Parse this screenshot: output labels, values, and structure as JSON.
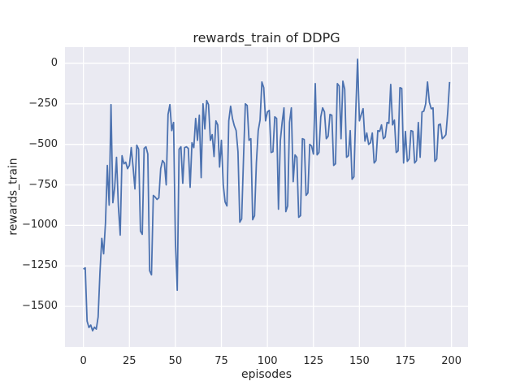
{
  "chart_data": {
    "type": "line",
    "title": "rewards_train of DDPG",
    "xlabel": "episodes",
    "ylabel": "rewards_train",
    "x_tick_values": [
      0,
      25,
      50,
      75,
      100,
      125,
      150,
      175,
      200
    ],
    "x_tick_labels": [
      "0",
      "25",
      "50",
      "75",
      "100",
      "125",
      "150",
      "175",
      "200"
    ],
    "y_tick_values": [
      0,
      -250,
      -500,
      -750,
      -1000,
      -1250,
      -1500
    ],
    "y_tick_labels": [
      "0",
      "−250",
      "−500",
      "−750",
      "−1000",
      "−1250",
      "−1500"
    ],
    "xlim": [
      -10,
      209
    ],
    "ylim": [
      -1750,
      100
    ],
    "grid": true,
    "legend_position": "none",
    "style": "seaborn-darkgrid",
    "colors": {
      "line": "#4C72B0",
      "axes_background": "#EAEAF2",
      "grid": "#FFFFFF",
      "figure_background": "#FFFFFF",
      "text": "#262626"
    },
    "series": [
      {
        "name": "rewards_train",
        "x_start": 0,
        "x_step": 1,
        "values": [
          -1270,
          -1262,
          -1590,
          -1630,
          -1615,
          -1650,
          -1628,
          -1640,
          -1565,
          -1290,
          -1080,
          -1175,
          -985,
          -630,
          -875,
          -255,
          -860,
          -765,
          -580,
          -880,
          -1060,
          -570,
          -620,
          -610,
          -650,
          -630,
          -520,
          -640,
          -775,
          -505,
          -530,
          -1035,
          -1055,
          -525,
          -515,
          -560,
          -1280,
          -1305,
          -815,
          -825,
          -840,
          -830,
          -650,
          -600,
          -615,
          -750,
          -315,
          -255,
          -415,
          -365,
          -1100,
          -1400,
          -530,
          -515,
          -740,
          -520,
          -515,
          -525,
          -765,
          -490,
          -520,
          -340,
          -475,
          -320,
          -705,
          -250,
          -405,
          -230,
          -255,
          -475,
          -440,
          -575,
          -355,
          -380,
          -640,
          -475,
          -750,
          -855,
          -880,
          -355,
          -265,
          -340,
          -385,
          -415,
          -545,
          -980,
          -960,
          -590,
          -250,
          -260,
          -475,
          -465,
          -965,
          -940,
          -615,
          -415,
          -350,
          -115,
          -150,
          -355,
          -300,
          -290,
          -550,
          -545,
          -330,
          -340,
          -900,
          -480,
          -365,
          -275,
          -915,
          -880,
          -365,
          -275,
          -730,
          -565,
          -580,
          -950,
          -940,
          -465,
          -470,
          -815,
          -800,
          -500,
          -510,
          -560,
          -125,
          -565,
          -550,
          -330,
          -275,
          -300,
          -465,
          -450,
          -315,
          -320,
          -630,
          -620,
          -125,
          -140,
          -465,
          -110,
          -160,
          -580,
          -570,
          -415,
          -715,
          -700,
          -300,
          25,
          -355,
          -315,
          -280,
          -480,
          -430,
          -500,
          -490,
          -430,
          -615,
          -600,
          -415,
          -420,
          -380,
          -465,
          -455,
          -365,
          -370,
          -130,
          -380,
          -350,
          -550,
          -540,
          -150,
          -155,
          -615,
          -420,
          -605,
          -590,
          -415,
          -420,
          -615,
          -600,
          -365,
          -580,
          -300,
          -295,
          -250,
          -115,
          -240,
          -280,
          -275,
          -605,
          -590,
          -380,
          -375,
          -465,
          -455,
          -440,
          -300,
          -115
        ]
      }
    ]
  }
}
